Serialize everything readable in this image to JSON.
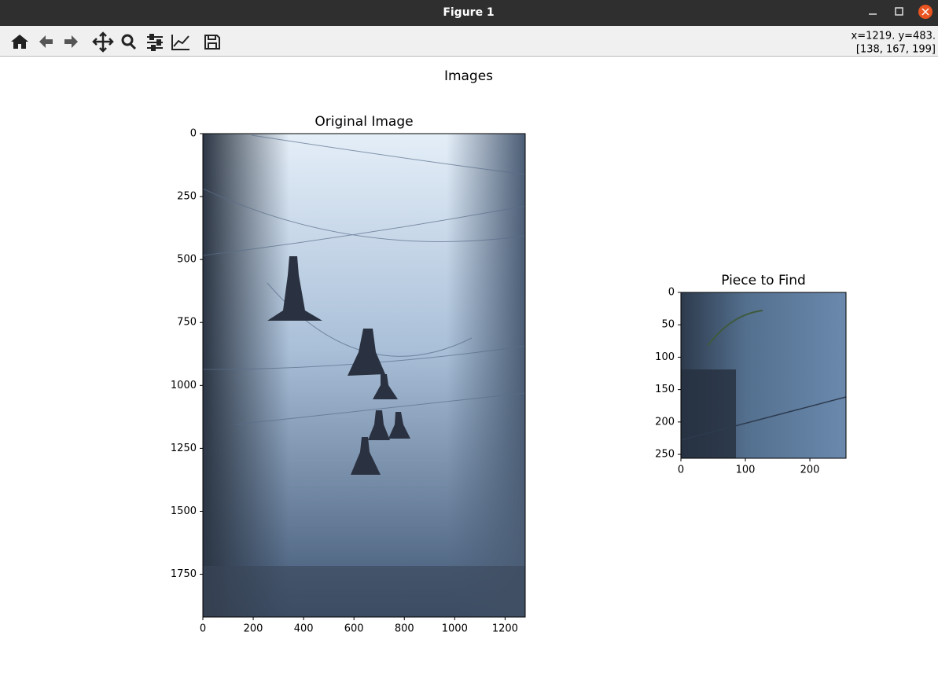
{
  "window": {
    "title": "Figure 1"
  },
  "toolbar": {
    "status": [
      "x=1219. y=483.",
      "[138, 167, 199]"
    ]
  },
  "figure": {
    "title": "Images"
  },
  "axes": [
    {
      "title": "Original Image",
      "xlim": [
        0,
        1280
      ],
      "ylim": [
        1920,
        0
      ],
      "xticks": [
        0,
        200,
        400,
        600,
        800,
        1000,
        1200
      ],
      "yticks": [
        0,
        250,
        500,
        750,
        1000,
        1250,
        1500,
        1750
      ]
    },
    {
      "title": "Piece to Find",
      "xlim": [
        0,
        256
      ],
      "ylim": [
        256,
        0
      ],
      "xticks": [
        0,
        100,
        200
      ],
      "yticks": [
        0,
        50,
        100,
        150,
        200,
        250
      ]
    }
  ]
}
